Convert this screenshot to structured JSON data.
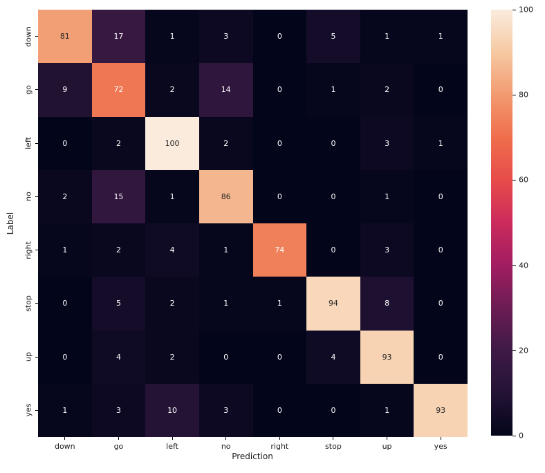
{
  "chart_data": {
    "type": "heatmap",
    "title": "",
    "xlabel": "Prediction",
    "ylabel": "Label",
    "x_categories": [
      "down",
      "go",
      "left",
      "no",
      "right",
      "stop",
      "up",
      "yes"
    ],
    "y_categories": [
      "down",
      "go",
      "left",
      "no",
      "right",
      "stop",
      "up",
      "yes"
    ],
    "matrix": [
      [
        81,
        17,
        1,
        3,
        0,
        5,
        1,
        1
      ],
      [
        9,
        72,
        2,
        14,
        0,
        1,
        2,
        0
      ],
      [
        0,
        2,
        100,
        2,
        0,
        0,
        3,
        1
      ],
      [
        2,
        15,
        1,
        86,
        0,
        0,
        1,
        0
      ],
      [
        1,
        2,
        4,
        1,
        74,
        0,
        3,
        0
      ],
      [
        0,
        5,
        2,
        1,
        1,
        94,
        8,
        0
      ],
      [
        0,
        4,
        2,
        0,
        0,
        4,
        93,
        0
      ],
      [
        1,
        3,
        10,
        3,
        0,
        0,
        1,
        93
      ]
    ],
    "vmin": 0,
    "vmax": 100,
    "grid": false,
    "legend_position": "colorbar-right",
    "colorbar_ticks": [
      100,
      80,
      60,
      40,
      20,
      0
    ],
    "colormap_name": "rocket",
    "colormap_stops": [
      [
        0,
        "#03051A"
      ],
      [
        10,
        "#241335"
      ],
      [
        20,
        "#3E1A46"
      ],
      [
        30,
        "#6B1D53"
      ],
      [
        40,
        "#A11D61"
      ],
      [
        50,
        "#CB2B5C"
      ],
      [
        60,
        "#E74C4A"
      ],
      [
        70,
        "#EF6E4C"
      ],
      [
        80,
        "#F29A70"
      ],
      [
        90,
        "#F6C9A2"
      ],
      [
        100,
        "#FAEBDD"
      ]
    ],
    "annotation_text_light": "#FFFFFF",
    "annotation_text_dark": "#262626"
  }
}
